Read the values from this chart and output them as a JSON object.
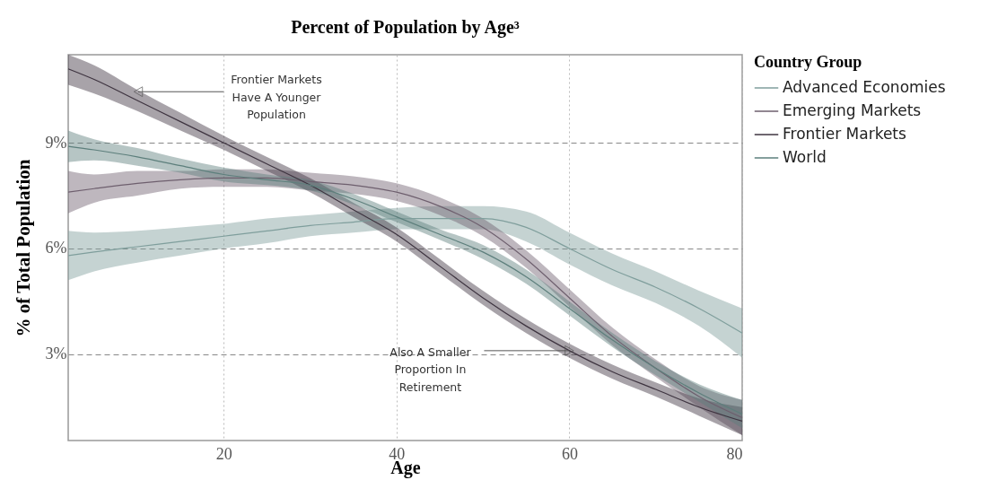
{
  "chart_data": {
    "type": "line",
    "title": "Percent of Population by Age³",
    "xlabel": "Age",
    "ylabel": "% of Total Population",
    "legend_title": "Country Group",
    "legend": "right",
    "grid": true,
    "marker": "none",
    "line_style": "solid",
    "x": [
      2,
      5,
      10,
      15,
      20,
      25,
      30,
      35,
      40,
      45,
      50,
      55,
      60,
      65,
      70,
      75,
      80
    ],
    "xlim": [
      2,
      80
    ],
    "xticks": [
      20,
      40,
      60,
      80
    ],
    "ylim": [
      0.55,
      11.5
    ],
    "yticks": [
      {
        "value": 3,
        "label": "3%"
      },
      {
        "value": 6,
        "label": "6%"
      },
      {
        "value": 9,
        "label": "9%"
      }
    ],
    "series": [
      {
        "name": "Advanced Economies",
        "color": "#7f9e9c",
        "values": [
          5.8,
          5.9,
          6.05,
          6.2,
          6.35,
          6.5,
          6.65,
          6.75,
          6.85,
          6.85,
          6.85,
          6.6,
          6.0,
          5.4,
          4.9,
          4.3,
          3.6
        ],
        "lower": [
          5.1,
          5.35,
          5.6,
          5.8,
          6.0,
          6.15,
          6.35,
          6.45,
          6.55,
          6.55,
          6.55,
          6.2,
          5.55,
          4.95,
          4.45,
          3.8,
          2.9
        ],
        "upper": [
          6.5,
          6.45,
          6.5,
          6.6,
          6.7,
          6.85,
          6.95,
          7.05,
          7.15,
          7.2,
          7.2,
          7.05,
          6.45,
          5.85,
          5.35,
          4.8,
          4.3
        ]
      },
      {
        "name": "Emerging Markets",
        "color": "#6e5f6e",
        "values": [
          7.6,
          7.7,
          7.85,
          7.95,
          8.0,
          8.0,
          7.9,
          7.8,
          7.6,
          7.2,
          6.6,
          5.7,
          4.6,
          3.5,
          2.6,
          1.8,
          1.2
        ],
        "lower": [
          7.0,
          7.3,
          7.5,
          7.7,
          7.75,
          7.75,
          7.65,
          7.55,
          7.35,
          6.95,
          6.35,
          5.45,
          4.35,
          3.25,
          2.35,
          1.5,
          0.7
        ],
        "upper": [
          8.2,
          8.1,
          8.2,
          8.2,
          8.25,
          8.25,
          8.15,
          8.05,
          7.85,
          7.45,
          6.85,
          5.95,
          4.85,
          3.75,
          2.85,
          2.1,
          1.7
        ]
      },
      {
        "name": "Frontier Markets",
        "color": "#3e3440",
        "values": [
          11.1,
          10.8,
          10.2,
          9.6,
          9.0,
          8.4,
          7.8,
          7.1,
          6.4,
          5.5,
          4.6,
          3.8,
          3.1,
          2.5,
          2.0,
          1.5,
          1.1
        ],
        "lower": [
          10.65,
          10.4,
          9.9,
          9.35,
          8.8,
          8.2,
          7.6,
          6.9,
          6.2,
          5.3,
          4.4,
          3.6,
          2.9,
          2.3,
          1.8,
          1.25,
          0.7
        ],
        "upper": [
          11.5,
          11.2,
          10.5,
          9.85,
          9.2,
          8.6,
          8.0,
          7.3,
          6.6,
          5.7,
          4.8,
          4.0,
          3.3,
          2.7,
          2.2,
          1.75,
          1.5
        ]
      },
      {
        "name": "World",
        "color": "#5d7f7c",
        "values": [
          8.9,
          8.8,
          8.6,
          8.35,
          8.1,
          7.95,
          7.8,
          7.4,
          6.9,
          6.4,
          5.9,
          5.2,
          4.3,
          3.4,
          2.6,
          1.9,
          1.3
        ],
        "lower": [
          8.45,
          8.5,
          8.35,
          8.15,
          7.9,
          7.8,
          7.65,
          7.25,
          6.75,
          6.25,
          5.7,
          5.0,
          4.1,
          3.2,
          2.4,
          1.65,
          0.9
        ],
        "upper": [
          9.35,
          9.1,
          8.85,
          8.55,
          8.3,
          8.1,
          7.95,
          7.55,
          7.05,
          6.55,
          6.1,
          5.4,
          4.5,
          3.6,
          2.8,
          2.15,
          1.7
        ]
      }
    ],
    "annotations": [
      {
        "text": "Frontier Markets\nHave A Younger\nPopulation",
        "x": 10.1,
        "y": 10.45
      },
      {
        "text": "Also A Smaller\nProportion In\nRetirement",
        "x": 60,
        "y": 3.1
      }
    ]
  }
}
